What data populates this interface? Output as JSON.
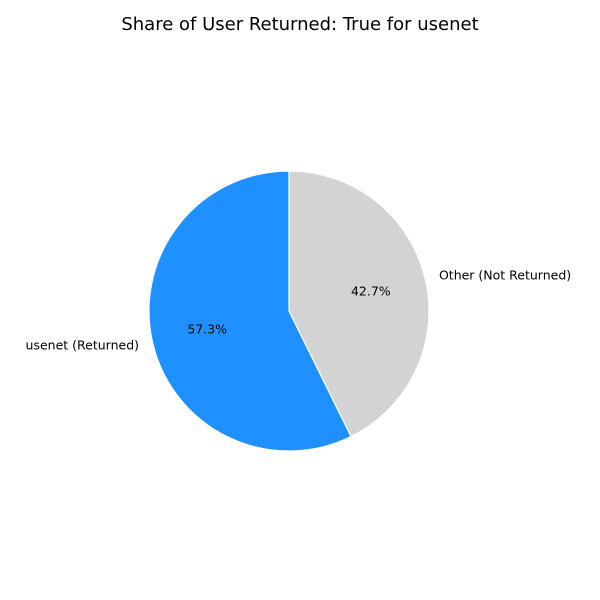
{
  "chart_data": {
    "type": "pie",
    "title": "Share of User Returned: True for usenet",
    "start_angle_deg": 90,
    "direction": "clockwise",
    "slices": [
      {
        "label": "Other (Not Returned)",
        "value": 42.7,
        "pct_label": "42.7%",
        "color": "#d3d3d3"
      },
      {
        "label": "usenet (Returned)",
        "value": 57.3,
        "pct_label": "57.3%",
        "color": "#1e90ff"
      }
    ]
  }
}
